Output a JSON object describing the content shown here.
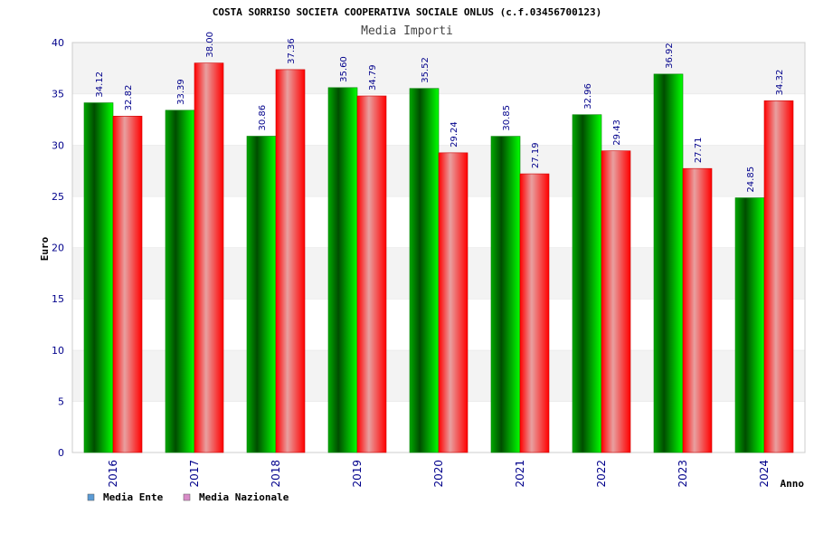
{
  "chart_data": {
    "type": "bar",
    "title": "COSTA SORRISO SOCIETA COOPERATIVA SOCIALE ONLUS (c.f.03456700123)",
    "subtitle": "Media Importi",
    "xlabel": "Anno",
    "ylabel": "Euro",
    "ylim": [
      0,
      40
    ],
    "yticks": [
      0,
      5,
      10,
      15,
      20,
      25,
      30,
      35,
      40
    ],
    "grid": true,
    "legend_position": "bottom-left",
    "categories": [
      "2016",
      "2017",
      "2018",
      "2019",
      "2020",
      "2021",
      "2022",
      "2023",
      "2024"
    ],
    "series": [
      {
        "name": "Media Ente",
        "values": [
          34.12,
          33.39,
          30.86,
          35.6,
          35.52,
          30.85,
          32.96,
          36.92,
          24.85
        ],
        "labels": [
          "34.12",
          "33.39",
          "30.86",
          "35.60",
          "35.52",
          "30.85",
          "32.96",
          "36.92",
          "24.85"
        ],
        "color": "#00c800",
        "legend_color": "#5b9bd5"
      },
      {
        "name": "Media Nazionale",
        "values": [
          32.82,
          38.0,
          37.36,
          34.79,
          29.24,
          27.19,
          29.43,
          27.71,
          34.32
        ],
        "labels": [
          "32.82",
          "38.00",
          "37.36",
          "34.79",
          "29.24",
          "27.19",
          "29.43",
          "27.71",
          "34.32"
        ],
        "color": "#ff1a1a",
        "legend_color": "#d98cc8"
      }
    ]
  }
}
